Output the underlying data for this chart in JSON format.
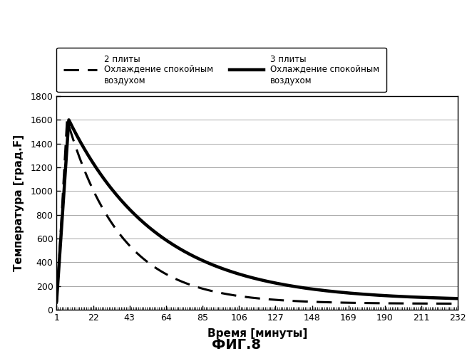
{
  "title": "ФИГ.8",
  "xlabel": "Время [минуты]",
  "ylabel": "Температура [град.F]",
  "ylim": [
    0,
    1800
  ],
  "xlim": [
    1,
    232
  ],
  "xticks": [
    1,
    22,
    43,
    64,
    85,
    106,
    127,
    148,
    169,
    190,
    211,
    232
  ],
  "yticks": [
    0,
    200,
    400,
    600,
    800,
    1000,
    1200,
    1400,
    1600,
    1800
  ],
  "label_dashed": "2 плиты\nОхлаждение спокойным\nвоздухом",
  "label_solid": "3 плиты\nОхлаждение спокойным\nвоздухом",
  "background_color": "#ffffff",
  "line_color": "#000000",
  "linewidth_solid": 3.2,
  "linewidth_dashed": 2.2,
  "T_peak": 1600,
  "x_peak": 8,
  "T_env_solid": 75,
  "T_env_dashed": 50,
  "k_solid": 0.0195,
  "k_dashed": 0.032
}
